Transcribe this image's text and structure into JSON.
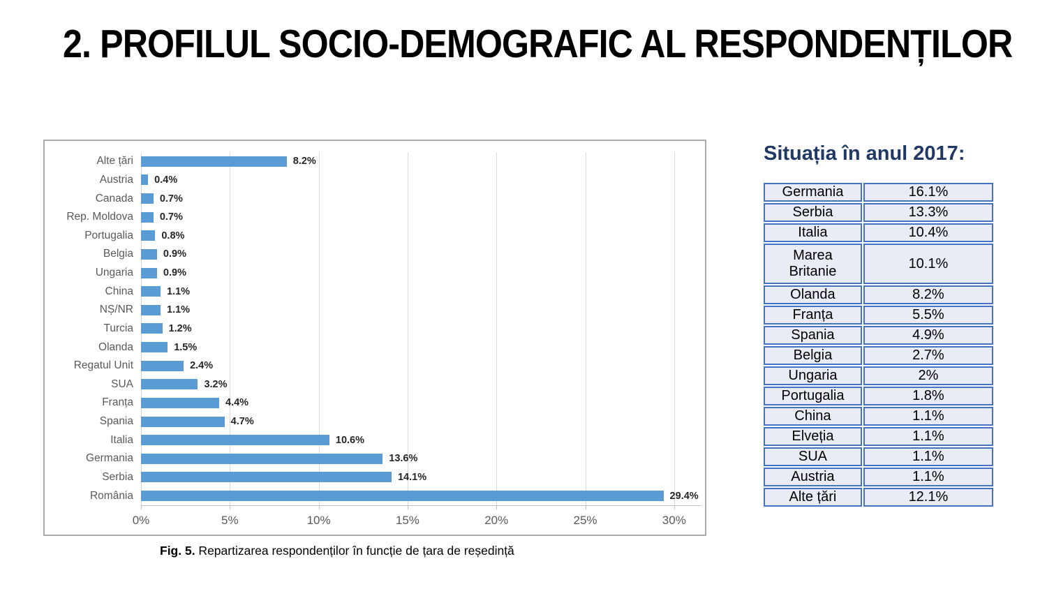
{
  "title": "2. PROFILUL SOCIO-DEMOGRAFIC AL RESPONDENȚILOR",
  "chart_data": {
    "type": "bar",
    "orientation": "horizontal",
    "title": "",
    "xlabel": "",
    "ylabel": "",
    "categories": [
      "Alte țări",
      "Austria",
      "Canada",
      "Rep. Moldova",
      "Portugalia",
      "Belgia",
      "Ungaria",
      "China",
      "NȘ/NR",
      "Turcia",
      "Olanda",
      "Regatul Unit",
      "SUA",
      "Franța",
      "Spania",
      "Italia",
      "Germania",
      "Serbia",
      "România"
    ],
    "values": [
      8.2,
      0.4,
      0.7,
      0.7,
      0.8,
      0.9,
      0.9,
      1.1,
      1.1,
      1.2,
      1.5,
      2.4,
      3.2,
      4.4,
      4.7,
      10.6,
      13.6,
      14.1,
      29.4
    ],
    "value_labels": [
      "8.2%",
      "0.4%",
      "0.7%",
      "0.7%",
      "0.8%",
      "0.9%",
      "0.9%",
      "1.1%",
      "1.1%",
      "1.2%",
      "1.5%",
      "2.4%",
      "3.2%",
      "4.4%",
      "4.7%",
      "10.6%",
      "13.6%",
      "14.1%",
      "29.4%"
    ],
    "xlim": [
      0,
      31.5
    ],
    "x_tick_values": [
      0,
      5,
      10,
      15,
      20,
      25,
      30
    ],
    "x_ticks": [
      "0%",
      "5%",
      "10%",
      "15%",
      "20%",
      "25%",
      "30%"
    ],
    "grid": true,
    "legend": "none",
    "bar_color": "#5b9bd5"
  },
  "caption": {
    "label": "Fig.  5.",
    "text": " Repartizarea respondenților în funcție de țara de reședință"
  },
  "panel_2017": {
    "title": "Situația în anul 2017:",
    "colors": {
      "header_text": "#1f3864",
      "cell_fill": "#e9ebf5",
      "cell_border": "#4472c4"
    },
    "rows": [
      {
        "country": "Germania",
        "value": "16.1%"
      },
      {
        "country": "Serbia",
        "value": "13.3%"
      },
      {
        "country": "Italia",
        "value": "10.4%"
      },
      {
        "country": "Marea Britanie",
        "value": "10.1%",
        "tall": true
      },
      {
        "country": "Olanda",
        "value": "8.2%"
      },
      {
        "country": "Franța",
        "value": "5.5%"
      },
      {
        "country": "Spania",
        "value": "4.9%"
      },
      {
        "country": "Belgia",
        "value": "2.7%"
      },
      {
        "country": "Ungaria",
        "value": "2%"
      },
      {
        "country": "Portugalia",
        "value": "1.8%"
      },
      {
        "country": "China",
        "value": "1.1%"
      },
      {
        "country": "Elveția",
        "value": "1.1%"
      },
      {
        "country": "SUA",
        "value": "1.1%"
      },
      {
        "country": "Austria",
        "value": "1.1%"
      },
      {
        "country": "Alte țări",
        "value": "12.1%"
      }
    ]
  }
}
